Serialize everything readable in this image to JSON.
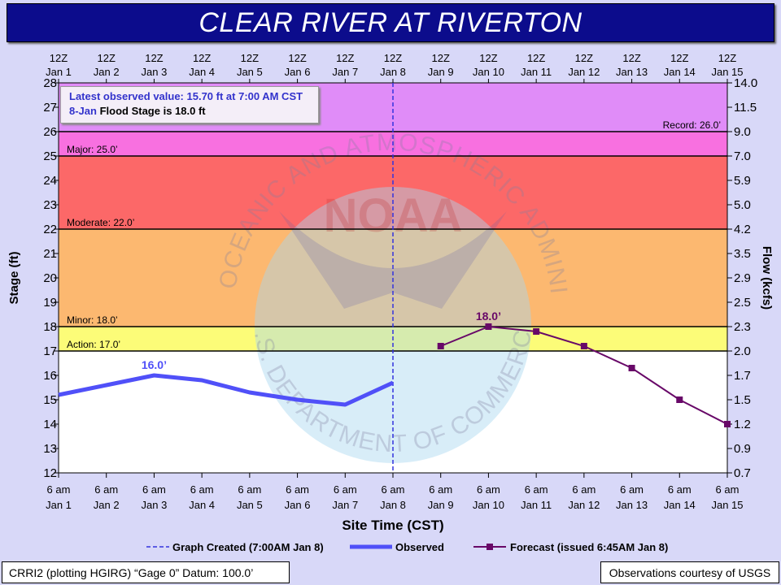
{
  "title": "CLEAR RIVER AT RIVERTON",
  "info": {
    "latest_observed": "Latest observed value: 15.70 ft at 7:00 AM CST",
    "flood_date": "8-Jan",
    "flood_stage_text": "Flood Stage is 18.0 ft"
  },
  "footer": {
    "left": "CRRI2 (plotting HGIRG) “Gage 0” Datum: 100.0’",
    "right": "Observations courtesy of USGS"
  },
  "watermark": {
    "arc_top": "NATIONAL OCEANIC AND ATMOSPHERIC ADMINISTRATION",
    "arc_bottom": "U.S. DEPARTMENT OF COMMERCE",
    "logo": "NOAA"
  },
  "colors": {
    "record_zone": "#e08cf8",
    "major_zone": "#f870e0",
    "moderate_zone": "#fc6868",
    "minor_zone": "#fcb870",
    "action_zone": "#fcfc78",
    "below_action": "#ffffff",
    "observed": "#5050f8",
    "forecast": "#680868",
    "created_line": "#3333dd"
  },
  "chart_data": {
    "type": "line",
    "xlabel": "Site Time (CST)",
    "ylabel": "Stage (ft)",
    "ylabel_right": "Flow (kcfs)",
    "ylim": [
      12,
      28
    ],
    "y_ticks": [
      12,
      13,
      14,
      15,
      16,
      17,
      18,
      19,
      20,
      21,
      22,
      23,
      24,
      25,
      26,
      27,
      28
    ],
    "right_ticks": [
      "0.7",
      "0.9",
      "1.2",
      "1.5",
      "1.7",
      "2.0",
      "2.3",
      "2.5",
      "2.9",
      "3.5",
      "4.2",
      "5.0",
      "5.9",
      "7.0",
      "9.0",
      "11.5",
      "14.0"
    ],
    "top_ticks_line1": [
      "12Z",
      "12Z",
      "12Z",
      "12Z",
      "12Z",
      "12Z",
      "12Z",
      "12Z",
      "12Z",
      "12Z",
      "12Z",
      "12Z",
      "12Z",
      "12Z",
      "12Z"
    ],
    "top_ticks_line2": [
      "Jan 1",
      "Jan 2",
      "Jan 3",
      "Jan 4",
      "Jan 5",
      "Jan 6",
      "Jan 7",
      "Jan 8",
      "Jan 9",
      "Jan 10",
      "Jan 11",
      "Jan 12",
      "Jan 13",
      "Jan 14",
      "Jan 15"
    ],
    "bottom_ticks_line1": [
      "6 am",
      "6 am",
      "6 am",
      "6 am",
      "6 am",
      "6 am",
      "6 am",
      "6 am",
      "6 am",
      "6 am",
      "6 am",
      "6 am",
      "6 am",
      "6 am",
      "6 am"
    ],
    "bottom_ticks_line2": [
      "Jan 1",
      "Jan 2",
      "Jan 3",
      "Jan 4",
      "Jan 5",
      "Jan 6",
      "Jan 7",
      "Jan 8",
      "Jan 9",
      "Jan 10",
      "Jan 11",
      "Jan 12",
      "Jan 13",
      "Jan 14",
      "Jan 15"
    ],
    "flood_categories": [
      {
        "label": "Record: 26.0’",
        "value": 26.0
      },
      {
        "label": "Major: 25.0’",
        "value": 25.0
      },
      {
        "label": "Moderate: 22.0’",
        "value": 22.0
      },
      {
        "label": "Minor: 18.0’",
        "value": 18.0
      },
      {
        "label": "Action: 17.0’",
        "value": 17.0
      }
    ],
    "series": [
      {
        "name": "Observed",
        "x": [
          0,
          1,
          2,
          3,
          4,
          5,
          6,
          7
        ],
        "values": [
          15.2,
          15.6,
          16.0,
          15.8,
          15.3,
          15.0,
          14.8,
          15.7
        ]
      },
      {
        "name": "Forecast (issued 6:45AM Jan 8)",
        "x": [
          8,
          9,
          10,
          11,
          12,
          13,
          14
        ],
        "values": [
          17.2,
          18.0,
          17.8,
          17.2,
          16.3,
          15.0,
          14.0
        ]
      }
    ],
    "annotations": [
      {
        "text": "16.0’",
        "x": 2,
        "y": 16.0,
        "series": "Observed"
      },
      {
        "text": "18.0’",
        "x": 9,
        "y": 18.0,
        "series": "Forecast"
      }
    ],
    "created_x": 7,
    "legend": [
      {
        "label": "Graph Created (7:00AM Jan 8)",
        "style": "dashed"
      },
      {
        "label": "Observed",
        "style": "thick"
      },
      {
        "label": "Forecast (issued 6:45AM Jan 8)",
        "style": "marker"
      }
    ],
    "legend_position": "bottom"
  }
}
